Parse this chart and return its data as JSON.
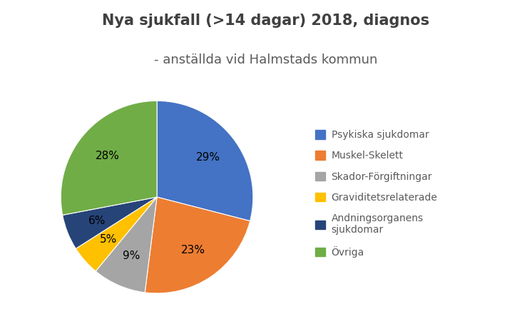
{
  "title_line1": "Nya sjukfall (>14 dagar) 2018, diagnos",
  "title_line2": "- anställda vid Halmstads kommun",
  "values": [
    29,
    23,
    9,
    5,
    6,
    28
  ],
  "colors": [
    "#4472C4",
    "#ED7D31",
    "#A5A5A5",
    "#FFC000",
    "#264478",
    "#70AD47"
  ],
  "pct_labels": [
    "29%",
    "23%",
    "9%",
    "5%",
    "6%",
    "28%"
  ],
  "legend_labels": [
    "Psykiska sjukdomar",
    "Muskel-Skelett",
    "Skador-Förgiftningar",
    "Graviditetsrelaterade",
    "Andningsorganens\nsjukdomar",
    "Övriga"
  ],
  "background_color": "#FFFFFF",
  "title_fontsize": 15,
  "subtitle_fontsize": 13,
  "legend_fontsize": 10,
  "pct_fontsize": 11
}
